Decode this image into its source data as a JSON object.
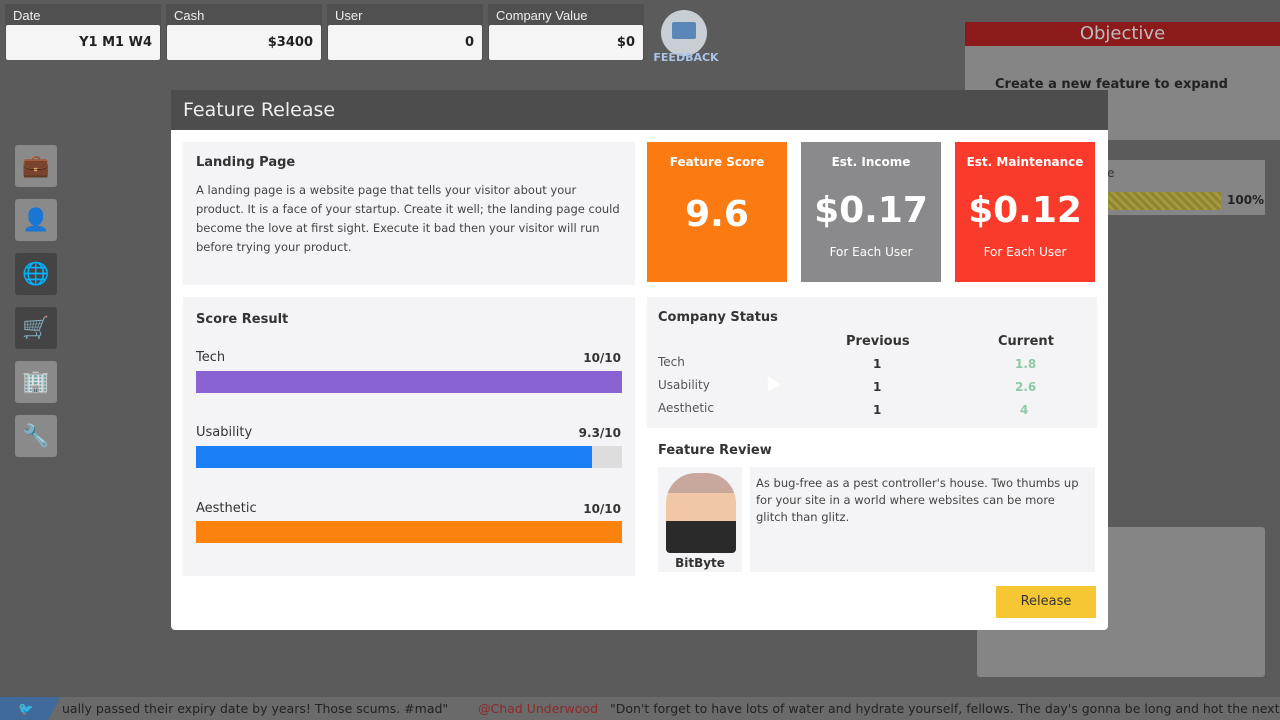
{
  "stats": [
    {
      "label": "Date",
      "value": "Y1 M1 W4"
    },
    {
      "label": "Cash",
      "value": "$3400"
    },
    {
      "label": "User",
      "value": "0"
    },
    {
      "label": "Company Value",
      "value": "$0"
    }
  ],
  "feedback_label": "FEEDBACK",
  "objective": {
    "title": "Objective",
    "text": "Create a new feature to expand your startup",
    "partial_label": "e",
    "progress_text": "100%",
    "progress": 100
  },
  "modal": {
    "title": "Feature Release",
    "feature": {
      "name": "Landing Page",
      "description": "A landing page is a website page that tells your visitor about your product. It is a face of your startup. Create it well; the landing page could become the love at first sight. Execute it bad then your visitor will run before trying your product."
    },
    "scores": [
      {
        "title": "Feature Score",
        "value": "9.6",
        "sub": "",
        "color": "#fb7a12"
      },
      {
        "title": "Est. Income",
        "value": "$0.17",
        "sub": "For Each User",
        "color": "#8a8a8c"
      },
      {
        "title": "Est. Maintenance",
        "value": "$0.12",
        "sub": "For Each User",
        "color": "#fa3a2a"
      }
    ],
    "score_result": {
      "title": "Score Result",
      "items": [
        {
          "label": "Tech",
          "value": "10/10",
          "fraction": 1.0,
          "color": "#8a63d2"
        },
        {
          "label": "Usability",
          "value": "9.3/10",
          "fraction": 0.93,
          "color": "#1a7ff5"
        },
        {
          "label": "Aesthetic",
          "value": "10/10",
          "fraction": 1.0,
          "color": "#fb820c"
        }
      ]
    },
    "company_status": {
      "title": "Company Status",
      "col_previous": "Previous",
      "col_current": "Current",
      "rows": [
        {
          "label": "Tech",
          "previous": "1",
          "current": "1.8"
        },
        {
          "label": "Usability",
          "previous": "1",
          "current": "2.6"
        },
        {
          "label": "Aesthetic",
          "previous": "1",
          "current": "4"
        }
      ]
    },
    "review": {
      "title": "Feature Review",
      "reviewer": "BitByte",
      "text": "As bug-free as a pest controller's house. Two thumbs up for your site in a world where websites can be more glitch than glitz."
    },
    "release_label": "Release"
  },
  "ticker": {
    "text1": "ually passed their expiry date by years! Those scums. #mad\"",
    "handle": "@Chad Underwood",
    "text2": "\"Don't forget to have lots of water and hydrate yourself, fellows. The day's gonna be long and hot the next three days"
  }
}
